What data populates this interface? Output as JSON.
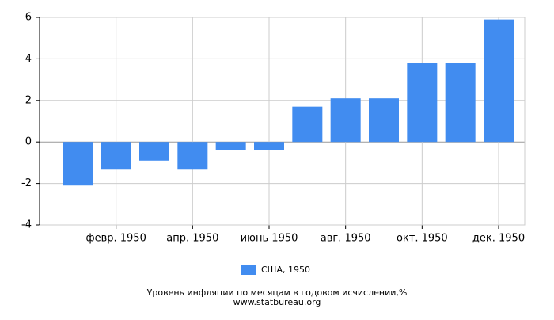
{
  "chart_data": {
    "type": "bar",
    "title": "Уровень инфляции по месяцам в годовом исчислении,%",
    "source": "www.statbureau.org",
    "categories": [
      null,
      "февр. 1950",
      null,
      "апр. 1950",
      null,
      "июнь 1950",
      null,
      "авг. 1950",
      null,
      "окт. 1950",
      null,
      "дек. 1950"
    ],
    "series": [
      {
        "name": "США, 1950",
        "color": "#418cf0",
        "values": [
          -2.1,
          -1.3,
          -0.9,
          -1.3,
          -0.4,
          -0.4,
          1.7,
          2.1,
          2.1,
          3.8,
          3.8,
          5.9
        ]
      }
    ],
    "ylim": [
      -4,
      6
    ],
    "yticks": [
      -4,
      -2,
      0,
      2,
      4,
      6
    ],
    "grid": true,
    "legend": "bottom"
  }
}
